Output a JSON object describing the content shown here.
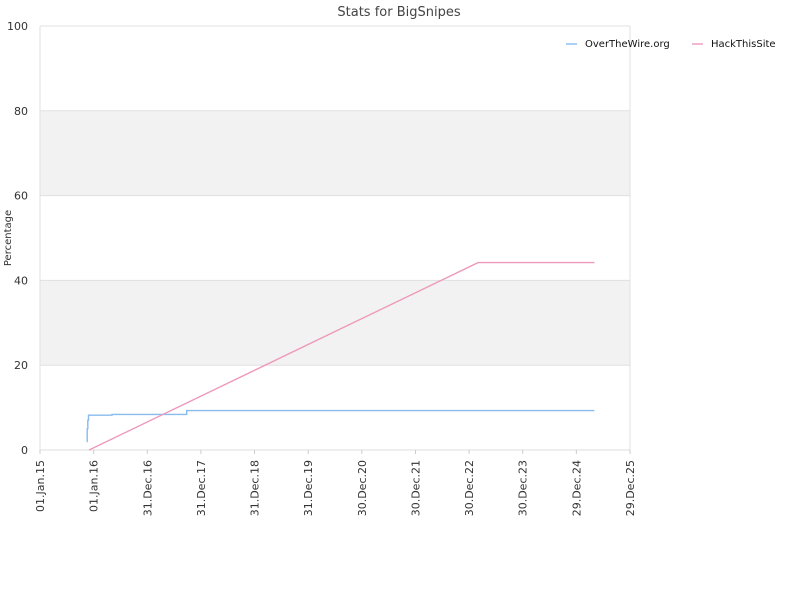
{
  "chart_data": {
    "type": "line",
    "title": "Stats for BigSnipes",
    "xlabel": "",
    "ylabel": "Percentage",
    "ylim": [
      0,
      100
    ],
    "xlim": [
      "2015-01-01",
      "2025-12-29"
    ],
    "yticks": [
      0,
      20,
      40,
      60,
      80,
      100
    ],
    "xtick_labels": [
      "01.Jan.15",
      "01.Jan.16",
      "31.Dec.16",
      "31.Dec.17",
      "31.Dec.18",
      "31.Dec.19",
      "30.Dec.20",
      "30.Dec.21",
      "30.Dec.22",
      "30.Dec.23",
      "29.Dec.24",
      "29.Dec.25"
    ],
    "grid": "horizontal bands",
    "legend_position": "top-right",
    "series": [
      {
        "name": "OverTheWire.org",
        "color": "#88bbee",
        "step": true,
        "points": [
          [
            "2015-11-15",
            2
          ],
          [
            "2015-11-18",
            5
          ],
          [
            "2015-11-22",
            7
          ],
          [
            "2015-11-27",
            8.2
          ],
          [
            "2016-05-01",
            8.2
          ],
          [
            "2016-05-05",
            8.4
          ],
          [
            "2017-09-20",
            8.4
          ],
          [
            "2017-09-25",
            9.3
          ],
          [
            "2025-05-01",
            9.3
          ]
        ]
      },
      {
        "name": "HackThisSite",
        "color": "#ee99bb",
        "step": false,
        "points": [
          [
            "2015-12-01",
            0
          ],
          [
            "2023-03-01",
            44.2
          ],
          [
            "2025-05-01",
            44.2
          ]
        ]
      }
    ]
  }
}
